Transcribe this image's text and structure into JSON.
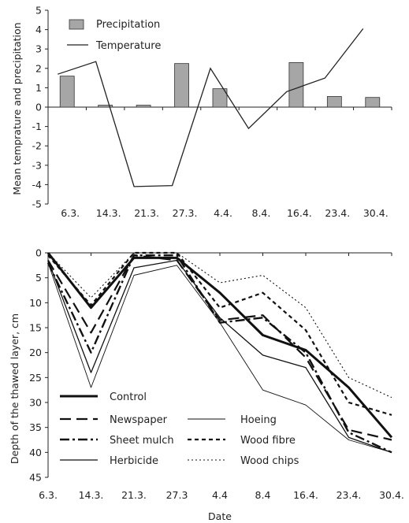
{
  "chart_data": [
    {
      "type": "bar+line",
      "categories": [
        "6.3.",
        "14.3.",
        "21.3.",
        "27.3.",
        "4.4.",
        "8.4.",
        "16.4.",
        "23.4.",
        "30.4."
      ],
      "ylabel": "Mean temprature and precipitation",
      "xlabel": "",
      "ylim": [
        -5,
        5
      ],
      "yticks": [
        -5,
        -4,
        -3,
        -2,
        -1,
        0,
        1,
        2,
        3,
        4,
        5
      ],
      "grid": false,
      "legend_position": "top-left",
      "series": [
        {
          "name": "Precipitation",
          "kind": "bar",
          "color": "#a6a6a6",
          "values": [
            1.6,
            0.1,
            0.1,
            2.25,
            0.95,
            null,
            2.3,
            0.55,
            0.5
          ]
        },
        {
          "name": "Temperature",
          "kind": "line",
          "color": "#222222",
          "values": [
            1.7,
            2.35,
            -4.1,
            -4.05,
            2.0,
            -1.1,
            0.8,
            1.5,
            4.05
          ]
        }
      ]
    },
    {
      "type": "line",
      "categories": [
        "6.3.",
        "14.3.",
        "21.3.",
        "27.3",
        "4.4",
        "8.4",
        "16.4.",
        "23.4.",
        "30.4."
      ],
      "xlabel": "Date",
      "ylabel": "Depth of the thawed layer, cm",
      "ylim": [
        0,
        45
      ],
      "yinverted": true,
      "yticks": [
        0,
        5,
        10,
        15,
        20,
        25,
        30,
        35,
        40,
        45
      ],
      "grid": false,
      "legend_position": "bottom-left",
      "series": [
        {
          "name": "Control",
          "style": "control",
          "values": [
            0,
            11,
            1,
            1,
            8,
            16.5,
            19.5,
            27,
            37
          ]
        },
        {
          "name": "Newspaper",
          "style": "newspaper",
          "values": [
            1.5,
            16,
            0.5,
            1.5,
            13.5,
            12.5,
            21,
            35.5,
            37.5
          ]
        },
        {
          "name": "Hoeing",
          "style": "hoeing",
          "values": [
            2,
            27,
            4.5,
            2.5,
            14,
            27.5,
            30.5,
            37.5,
            40
          ]
        },
        {
          "name": "Sheet mulch",
          "style": "sheetmulch",
          "values": [
            2,
            20,
            0.5,
            0.5,
            14,
            13,
            20,
            36,
            40
          ]
        },
        {
          "name": "Wood fibre",
          "style": "woodfibre",
          "values": [
            0.5,
            10.5,
            0,
            0,
            11,
            8,
            15.5,
            30,
            32.5
          ]
        },
        {
          "name": "Herbicide",
          "style": "herbicide",
          "values": [
            1.5,
            24,
            3,
            1.5,
            13,
            20.5,
            23,
            37,
            40
          ]
        },
        {
          "name": "Wood chips",
          "style": "woodchips",
          "values": [
            0,
            9,
            0,
            0,
            6,
            4.5,
            11,
            25,
            29
          ]
        }
      ]
    }
  ]
}
